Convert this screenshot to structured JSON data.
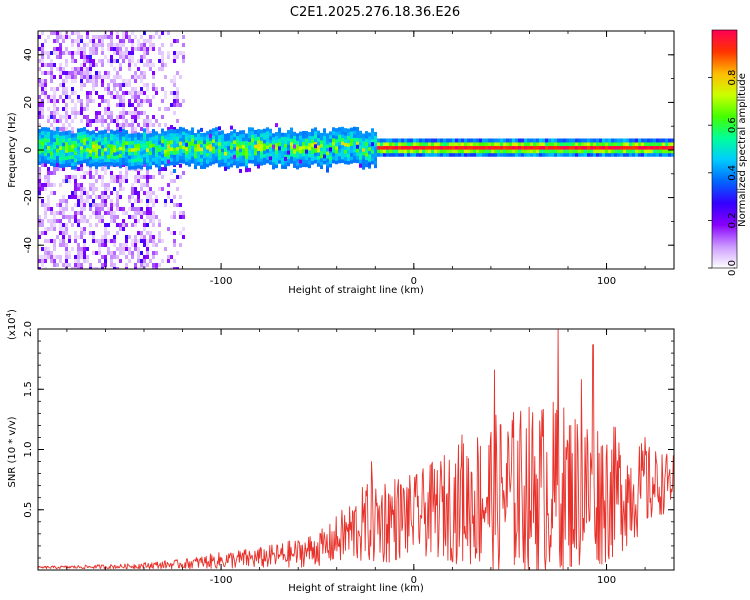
{
  "title": "C2E1.2025.276.18.36.E26",
  "colors": {
    "snr_line": "#e8312a",
    "spectro_core": "#ff2a2a",
    "axis": "#000000"
  },
  "chart_data": [
    {
      "type": "heatmap",
      "name": "spectrogram",
      "xlabel": "Height of straight line (km)",
      "ylabel": "Frequency (Hz)",
      "xlim": [
        -195,
        135
      ],
      "ylim": [
        -50,
        50
      ],
      "xticks": [
        -100,
        0,
        100
      ],
      "xtick_labels": [
        "-100",
        "0",
        "100"
      ],
      "yticks": [
        -40,
        -20,
        0,
        20,
        40
      ],
      "ytick_labels": [
        "-40",
        "-20",
        "0",
        "20",
        "40"
      ],
      "signal_track_freq_hz": 1,
      "colorbar": {
        "label": "Normalized spectral amplitude",
        "range": [
          0,
          1
        ],
        "ticks": [
          0.0,
          0.2,
          0.4,
          0.6,
          0.8
        ],
        "tick_labels": [
          "0.0",
          "0.2",
          "0.4",
          "0.6",
          "0.8"
        ],
        "colormap": [
          "#ffffff",
          "#cc99ff",
          "#8800ff",
          "#3300ff",
          "#0066ff",
          "#00ccff",
          "#00ff99",
          "#44ff00",
          "#ccff00",
          "#ffbb00",
          "#ff3300",
          "#ff0055"
        ]
      }
    },
    {
      "type": "line",
      "name": "snr",
      "xlabel": "Height of straight line (km)",
      "ylabel": "SNR (10 * v/v)",
      "scale_label": "(x10",
      "scale_exponent": "4",
      "scale_suffix": ")",
      "xlim": [
        -195,
        135
      ],
      "ylim": [
        0,
        2.0
      ],
      "xticks": [
        -100,
        0,
        100
      ],
      "xtick_labels": [
        "-100",
        "0",
        "100"
      ],
      "yticks": [
        0.5,
        1.0,
        1.5,
        2.0
      ],
      "ytick_labels": [
        "0.5",
        "1.0",
        "1.5",
        "2.0"
      ],
      "envelope": {
        "x": [
          -195,
          -150,
          -120,
          -100,
          -80,
          -60,
          -45,
          -35,
          -25,
          -15,
          0,
          10,
          25,
          40,
          55,
          70,
          85,
          100,
          115,
          135
        ],
        "median": [
          0.02,
          0.03,
          0.05,
          0.08,
          0.1,
          0.14,
          0.2,
          0.3,
          0.38,
          0.42,
          0.45,
          0.5,
          0.56,
          0.62,
          0.66,
          0.68,
          0.66,
          0.64,
          0.66,
          0.75
        ],
        "spread": [
          0.01,
          0.02,
          0.04,
          0.07,
          0.09,
          0.12,
          0.16,
          0.25,
          0.34,
          0.38,
          0.34,
          0.4,
          0.52,
          0.66,
          0.7,
          0.75,
          0.68,
          0.6,
          0.42,
          0.2
        ]
      },
      "peaks": [
        {
          "x": -22,
          "y": 0.9
        },
        {
          "x": 25,
          "y": 1.12
        },
        {
          "x": 42,
          "y": 1.66
        },
        {
          "x": 75,
          "y": 2.0
        },
        {
          "x": 87,
          "y": 1.58
        },
        {
          "x": 93,
          "y": 1.87
        },
        {
          "x": 120,
          "y": 1.1
        }
      ]
    }
  ]
}
